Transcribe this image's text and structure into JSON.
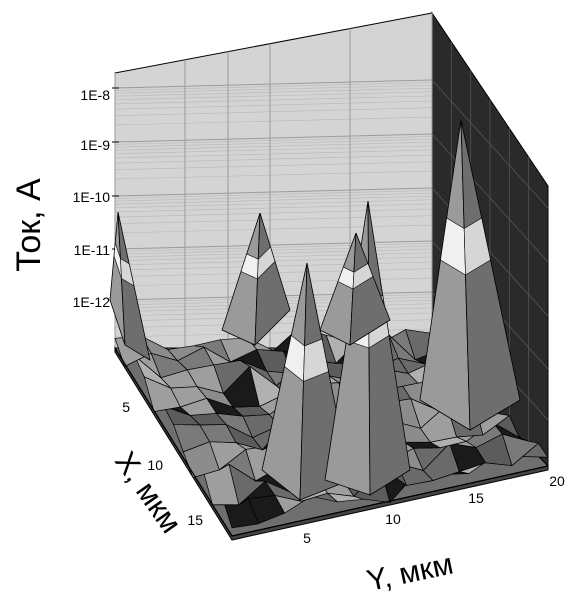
{
  "chart_data": {
    "type": "surface3d",
    "title": "",
    "zlabel": "Ток, А",
    "xlabel": "X, мкм",
    "ylabel": "Y, мкм",
    "z_scale": "log",
    "z_ticks": [
      "1E-8",
      "1E-9",
      "1E-10",
      "1E-11",
      "1E-12"
    ],
    "x_ticks": [
      "5",
      "10",
      "15"
    ],
    "y_ticks": [
      "5",
      "10",
      "15",
      "20"
    ],
    "xlim": [
      0,
      18
    ],
    "ylim": [
      0,
      20
    ],
    "grid": true,
    "peaks": [
      {
        "x": 2,
        "y": 0,
        "z": "3E-11"
      },
      {
        "x": 3,
        "y": 5,
        "z": "1E-10"
      },
      {
        "x": 9,
        "y": 7,
        "z": "3E-11"
      },
      {
        "x": 5,
        "y": 13,
        "z": "1E-10"
      },
      {
        "x": 3,
        "y": 11,
        "z": "3E-11"
      },
      {
        "x": 4,
        "y": 19,
        "z": "1E-9"
      }
    ],
    "colors": {
      "back_wall": "#d4d4d4",
      "side_wall": "#2a2a2a",
      "floor": "#6f6f6f",
      "surface": "#8a8a8a",
      "highlight": "#f0f0f0",
      "grid": "#9a9a9a"
    }
  }
}
